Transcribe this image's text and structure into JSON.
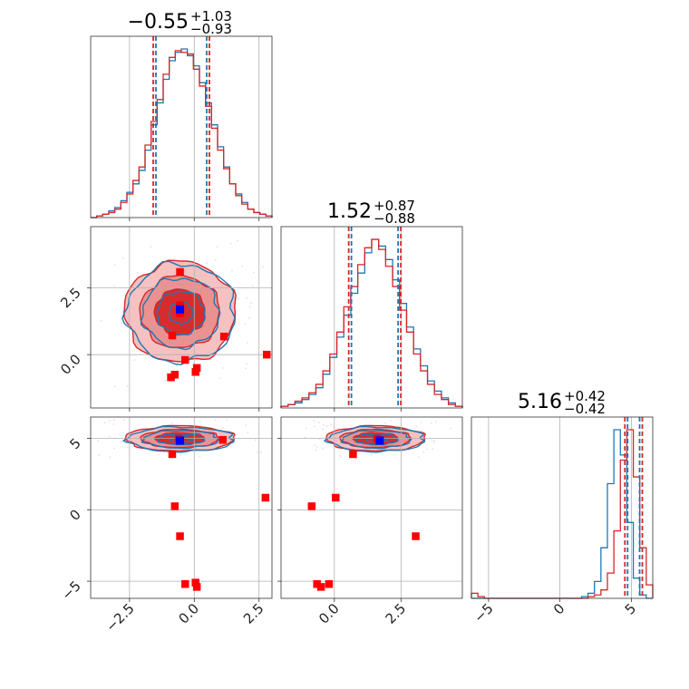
{
  "colors": {
    "blue": "#1f77b4",
    "red": "#d62728",
    "red_marker": "#ff0000",
    "truth_marker": "#0000ff",
    "grid": "#b0b0b0",
    "fill_outer": "#f4b6b6",
    "fill_mid": "#e88a8a",
    "fill_inner": "#d62728"
  },
  "chart_data": {
    "type": "corner",
    "parameters": [
      {
        "title_main": "−0.55",
        "title_plus": "+1.03",
        "title_minus": "−0.93",
        "median": -0.55,
        "lo": -1.48,
        "hi": 0.48
      },
      {
        "title_main": "1.52",
        "title_plus": "+0.87",
        "title_minus": "−0.88",
        "median": 1.52,
        "lo": 0.64,
        "hi": 2.39
      },
      {
        "title_main": "5.16",
        "title_plus": "+0.42",
        "title_minus": "−0.42",
        "median": 5.16,
        "lo": 4.74,
        "hi": 5.58
      }
    ],
    "axis_ranges": {
      "p0": [
        -4.0,
        3.0
      ],
      "p1": [
        -2.0,
        4.8
      ],
      "p2": [
        -6.2,
        6.5
      ]
    },
    "ticks": {
      "x_p0": [
        "−2.5",
        "0.0",
        "2.5"
      ],
      "x_p1": [
        "0.0",
        "2.5"
      ],
      "x_p2": [
        "−5",
        "0",
        "5"
      ],
      "y_p1": [
        "0.0",
        "2.5"
      ],
      "y_p2": [
        "−5",
        "0",
        "5"
      ]
    },
    "tick_values": {
      "x_p0": [
        -2.5,
        0.0,
        2.5
      ],
      "x_p1": [
        0.0,
        2.5
      ],
      "x_p2": [
        -5,
        0,
        5
      ],
      "y_p1": [
        0.0,
        2.5
      ],
      "y_p2": [
        -5,
        0,
        5
      ]
    },
    "hist_blue": {
      "p0": [
        0.0,
        0.01,
        0.02,
        0.04,
        0.06,
        0.1,
        0.15,
        0.2,
        0.28,
        0.4,
        0.55,
        0.68,
        0.82,
        0.93,
        0.98,
        1.0,
        0.96,
        0.9,
        0.8,
        0.68,
        0.55,
        0.42,
        0.3,
        0.2,
        0.14,
        0.09,
        0.05,
        0.03,
        0.02,
        0.01
      ],
      "p1": [
        0.01,
        0.02,
        0.03,
        0.05,
        0.08,
        0.12,
        0.2,
        0.3,
        0.42,
        0.55,
        0.68,
        0.8,
        0.92,
        1.0,
        0.96,
        0.88,
        0.76,
        0.62,
        0.48,
        0.35,
        0.25,
        0.16,
        0.1,
        0.06,
        0.03,
        0.01
      ],
      "p2": [
        0.0,
        0.0,
        0.0,
        0.0,
        0.0,
        0.0,
        0.0,
        0.0,
        0.0,
        0.0,
        0.0,
        0.0,
        0.0,
        0.0,
        0.0,
        0.0,
        0.0,
        0.01,
        0.03,
        0.1,
        0.3,
        0.68,
        1.0,
        0.85,
        0.45,
        0.12,
        0.02,
        0.0
      ]
    },
    "hist_red": {
      "p0": [
        0.0,
        0.01,
        0.02,
        0.03,
        0.05,
        0.09,
        0.14,
        0.22,
        0.3,
        0.43,
        0.57,
        0.7,
        0.85,
        0.95,
        0.99,
        0.98,
        0.97,
        0.88,
        0.78,
        0.66,
        0.53,
        0.4,
        0.29,
        0.2,
        0.13,
        0.08,
        0.05,
        0.03,
        0.02,
        0.01
      ],
      "p1": [
        0.01,
        0.02,
        0.04,
        0.06,
        0.09,
        0.14,
        0.22,
        0.32,
        0.45,
        0.6,
        0.72,
        0.85,
        0.95,
        1.0,
        0.94,
        0.84,
        0.72,
        0.58,
        0.45,
        0.32,
        0.22,
        0.14,
        0.08,
        0.05,
        0.02,
        0.01
      ],
      "p2": [
        0.03,
        0.01,
        0.0,
        0.0,
        0.0,
        0.0,
        0.0,
        0.0,
        0.0,
        0.0,
        0.0,
        0.0,
        0.0,
        0.0,
        0.0,
        0.0,
        0.0,
        0.0,
        0.01,
        0.02,
        0.05,
        0.15,
        0.4,
        0.82,
        1.0,
        0.72,
        0.3,
        0.08
      ]
    },
    "contours": {
      "p0_p1": {
        "center": [
          -0.55,
          1.6
        ],
        "sx": 1.02,
        "sy": 0.9
      },
      "p0_p2": {
        "center": [
          -0.55,
          5.0
        ],
        "sx": 1.0,
        "sy": 0.42
      },
      "p1_p2": {
        "center": [
          1.55,
          5.0
        ],
        "sx": 0.88,
        "sy": 0.42
      }
    },
    "truth_point": {
      "p0": -0.55,
      "p1": 1.7,
      "p2": 4.85
    },
    "red_markers": {
      "p0_p1": [
        [
          -0.55,
          3.1
        ],
        [
          -0.55,
          1.85
        ],
        [
          -0.55,
          1.55
        ],
        [
          -0.85,
          0.72
        ],
        [
          1.15,
          0.68
        ],
        [
          -0.35,
          -0.2
        ],
        [
          0.1,
          -0.5
        ],
        [
          0.05,
          -0.65
        ],
        [
          -0.75,
          -0.75
        ],
        [
          -0.9,
          -0.85
        ],
        [
          2.8,
          0.0
        ]
      ],
      "p0_p2": [
        [
          -0.85,
          3.9
        ],
        [
          -0.75,
          0.25
        ],
        [
          -0.55,
          -1.85
        ],
        [
          -0.35,
          -5.2
        ],
        [
          0.05,
          -5.1
        ],
        [
          0.1,
          -5.4
        ],
        [
          2.75,
          0.85
        ],
        [
          1.1,
          4.9
        ],
        [
          -0.6,
          5.0
        ]
      ],
      "p1_p2": [
        [
          0.7,
          3.9
        ],
        [
          -0.85,
          0.25
        ],
        [
          0.05,
          0.85
        ],
        [
          3.05,
          -1.85
        ],
        [
          -0.65,
          -5.2
        ],
        [
          -0.5,
          -5.4
        ],
        [
          -0.2,
          -5.2
        ],
        [
          1.6,
          5.0
        ]
      ]
    }
  }
}
